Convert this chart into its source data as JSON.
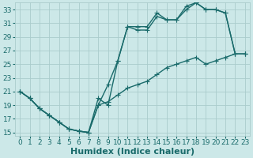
{
  "xlabel": "Humidex (Indice chaleur)",
  "xlim": [
    -0.5,
    23.5
  ],
  "ylim": [
    14.5,
    34
  ],
  "xticks": [
    0,
    1,
    2,
    3,
    4,
    5,
    6,
    7,
    8,
    9,
    10,
    11,
    12,
    13,
    14,
    15,
    16,
    17,
    18,
    19,
    20,
    21,
    22,
    23
  ],
  "yticks": [
    15,
    17,
    19,
    21,
    23,
    25,
    27,
    29,
    31,
    33
  ],
  "background_color": "#cce8e8",
  "grid_color": "#aacccc",
  "line_color": "#1a6b6b",
  "line1_x": [
    0,
    1,
    2,
    3,
    4,
    5,
    6,
    7,
    8,
    9,
    10,
    11,
    12,
    13,
    14,
    15,
    16,
    17,
    18,
    19,
    20,
    21,
    22,
    23
  ],
  "line1_y": [
    21,
    20,
    18.5,
    17.5,
    16.5,
    15.5,
    15.2,
    15.0,
    19,
    22,
    25.5,
    30.5,
    30.5,
    30.5,
    32.5,
    31.5,
    31.5,
    33.5,
    34,
    33,
    33,
    32.5,
    26.5,
    26.5
  ],
  "line2_x": [
    0,
    1,
    2,
    3,
    4,
    5,
    6,
    7,
    8,
    9,
    10,
    11,
    12,
    13,
    14,
    15,
    16,
    17,
    18,
    19,
    20,
    21,
    22,
    23
  ],
  "line2_y": [
    21,
    20,
    18.5,
    17.5,
    16.5,
    15.5,
    15.2,
    15.0,
    20,
    19,
    25.5,
    30.5,
    30.0,
    30.0,
    32.0,
    31.5,
    31.5,
    33.0,
    34,
    33,
    33,
    32.5,
    26.5,
    26.5
  ],
  "line3_x": [
    0,
    1,
    2,
    3,
    4,
    5,
    6,
    7,
    8,
    9,
    10,
    11,
    12,
    13,
    14,
    15,
    16,
    17,
    18,
    19,
    20,
    21,
    22,
    23
  ],
  "line3_y": [
    21,
    20,
    18.5,
    17.5,
    16.5,
    15.5,
    15.2,
    15.0,
    19,
    19.5,
    20.5,
    21.5,
    22,
    22.5,
    23.5,
    24.5,
    25,
    25.5,
    26,
    25,
    25.5,
    26,
    26.5,
    26.5
  ],
  "marker": "+",
  "markersize": 4,
  "linewidth": 1.0,
  "xlabel_fontsize": 8,
  "tick_fontsize": 6.5
}
